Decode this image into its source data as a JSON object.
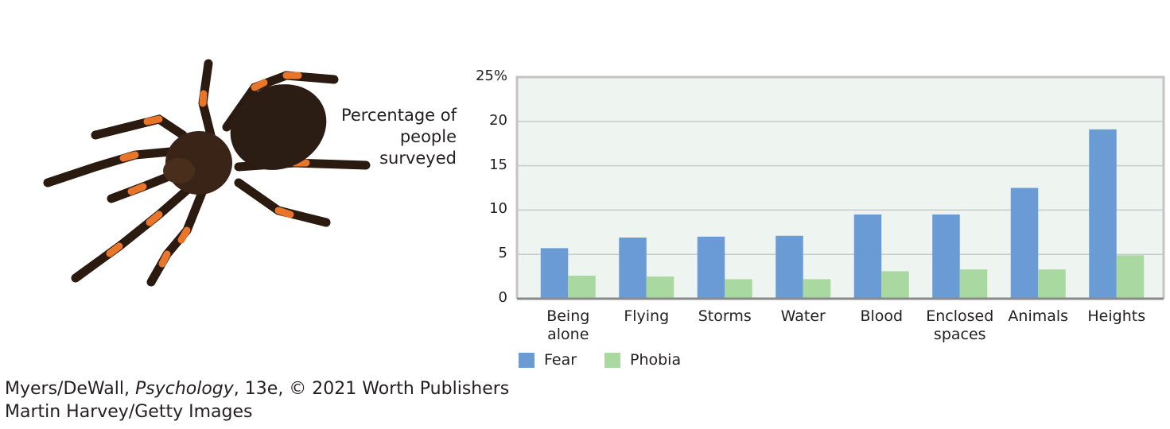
{
  "chart_data": {
    "type": "bar",
    "ylabel": "Percentage of people surveyed",
    "categories": [
      "Being alone",
      "Flying",
      "Storms",
      "Water",
      "Blood",
      "Enclosed spaces",
      "Animals",
      "Heights"
    ],
    "series": [
      {
        "name": "Fear",
        "color": "#6a9bd4",
        "values": [
          5.7,
          6.9,
          7.0,
          7.1,
          9.5,
          9.5,
          12.5,
          19.1
        ]
      },
      {
        "name": "Phobia",
        "color": "#a9d8a1",
        "values": [
          2.6,
          2.5,
          2.2,
          2.2,
          3.1,
          3.3,
          3.3,
          4.9
        ]
      }
    ],
    "ylim": [
      0,
      25
    ],
    "yticks": [
      0,
      5,
      10,
      15,
      20,
      {
        "value": 25,
        "label": "25%"
      }
    ],
    "grid": true
  },
  "source": {
    "authors": "Myers/DeWall,",
    "book": "Psychology",
    "rest": ", 13e, © 2021 Worth Publishers"
  },
  "photo_credit": "Martin Harvey/Getty Images"
}
